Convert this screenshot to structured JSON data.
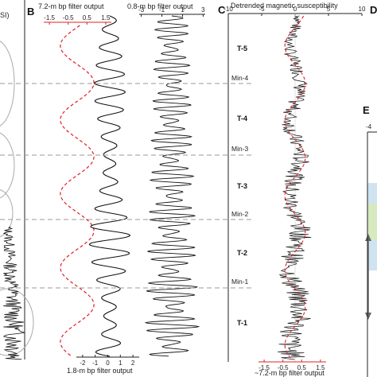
{
  "panels": {
    "a": {
      "unit_fragment": "SI)"
    },
    "b": {
      "letter": "B"
    },
    "c": {
      "letter": "C",
      "top_label": "Detrended magnetic susceptibility",
      "bottom_label": "~7.2-m bp filter output"
    },
    "d": {
      "letter": "D"
    },
    "e": {
      "letter": "E",
      "tick": "-4"
    }
  },
  "chart_data": [
    {
      "type": "line",
      "name": "7.2-m bp filter output",
      "xlabel": "7.2-m bp filter output",
      "xticks": [
        "-1.5",
        "-0.5",
        "0.5",
        "1.5"
      ],
      "xlim": [
        -1.8,
        1.8
      ],
      "line_color": "#e0202a",
      "style": "dashed",
      "cycles_in_section": 4.6,
      "amplitude": 1.0
    },
    {
      "type": "line",
      "name": "1.8-m bp filter output",
      "xlabel": "1.8-m bp filter output",
      "xticks": [
        "-2",
        "-1",
        "0",
        "1",
        "2"
      ],
      "xlim": [
        -2.5,
        2.5
      ],
      "line_color": "#111111",
      "cycles_in_section": 19,
      "amplitude_min": 0.5,
      "amplitude_max": 2.0
    },
    {
      "type": "line",
      "name": "0.8-m bp filter output",
      "xlabel": "0.8-m bp filter output",
      "xticks": [
        "-3",
        "-1",
        "1",
        "3"
      ],
      "xlim": [
        -3.2,
        3.2
      ],
      "line_color": "#111111",
      "cycles_in_section": 43,
      "amplitude_min": 0.5,
      "amplitude_max": 2.8
    },
    {
      "type": "line",
      "name": "Detrended magnetic susceptibility",
      "xlabel": "Detrended magnetic susceptibility",
      "xticks": [
        "-10",
        "-5",
        "0",
        "5",
        "10"
      ],
      "xlim": [
        -10,
        10
      ],
      "overlay_name": "~7.2-m bp filter output",
      "overlay_xticks": [
        "-1.5",
        "-0.5",
        "0.5",
        "1.5"
      ],
      "zones": [
        "T-5",
        "T-4",
        "T-3",
        "T-2",
        "T-1"
      ],
      "minima": [
        "Min-4",
        "Min-3",
        "Min-2",
        "Min-1"
      ]
    }
  ]
}
